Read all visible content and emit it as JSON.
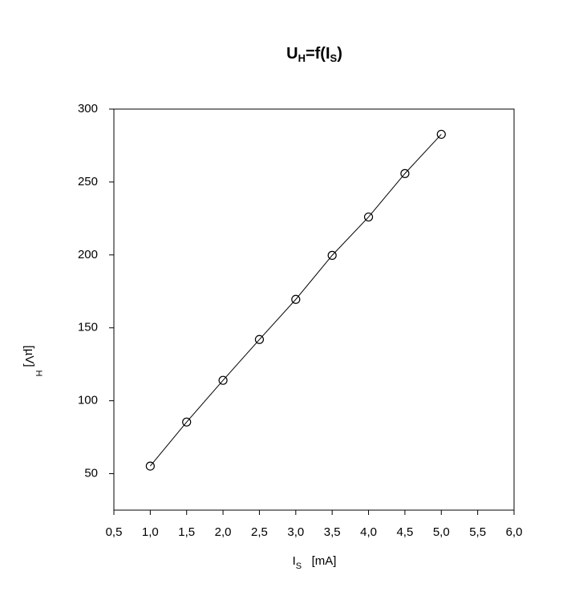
{
  "chart_data": {
    "type": "line",
    "title": [
      "U",
      "H",
      "=f(I",
      "S",
      ")"
    ],
    "x_label": [
      "I",
      "S",
      "   [mA]"
    ],
    "y_label": [
      "[µV]",
      "H"
    ],
    "x": [
      1.0,
      1.5,
      2.0,
      2.5,
      3.0,
      3.5,
      4.0,
      4.5,
      5.0
    ],
    "values": [
      55.2,
      85.4,
      114,
      142,
      169.5,
      199.7,
      226,
      255.8,
      282.7
    ],
    "color": "#000000",
    "xlim": [
      0.5,
      6.0
    ],
    "xticks": [
      {
        "value": 0.5,
        "label": "0,5"
      },
      {
        "value": 1.0,
        "label": "1,0"
      },
      {
        "value": 1.5,
        "label": "1,5"
      },
      {
        "value": 2.0,
        "label": "2,0"
      },
      {
        "value": 2.5,
        "label": "2,5"
      },
      {
        "value": 3.0,
        "label": "3,0"
      },
      {
        "value": 3.5,
        "label": "3,5"
      },
      {
        "value": 4.0,
        "label": "4,0"
      },
      {
        "value": 4.5,
        "label": "4,5"
      },
      {
        "value": 5.0,
        "label": "5,0"
      },
      {
        "value": 5.5,
        "label": "5,5"
      },
      {
        "value": 6.0,
        "label": "6,0"
      }
    ],
    "ylim": [
      25,
      300
    ],
    "yticks": [
      50,
      100,
      150,
      200,
      250,
      300
    ]
  }
}
